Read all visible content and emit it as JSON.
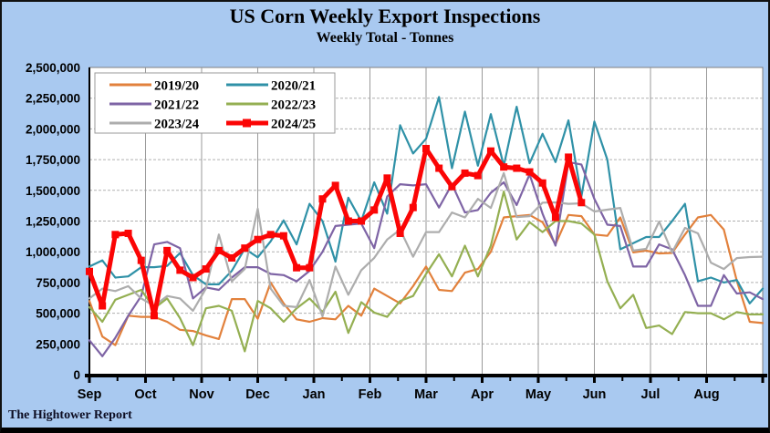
{
  "footer": "The Hightower Report",
  "colors": {
    "background": "#a9c9f0",
    "plot_background": "#ffffff",
    "axis": "#000000",
    "grid_horizontal": "#b0b0b0",
    "grid_vertical": "#9a9a9a",
    "plot_border": "#7f7f7f",
    "legend_border": "#999999",
    "label_text": "#000000"
  },
  "chart_data": {
    "type": "line",
    "title": "US Corn Weekly Export Inspections",
    "subtitle": "Weekly Total - Tonnes",
    "xlabel": "",
    "ylabel": "",
    "x_axis": {
      "unit": "weekly, Sep-Aug marketing year",
      "month_tick_labels": [
        "Sep",
        "Oct",
        "Nov",
        "Dec",
        "Jan",
        "Feb",
        "Mar",
        "Apr",
        "May",
        "Jun",
        "Jul",
        "Aug"
      ],
      "weeks_per_year": 53
    },
    "y_axis": {
      "ylim": [
        0,
        2500000
      ],
      "tick_step": 250000,
      "tick_labels": [
        "0",
        "250,000",
        "500,000",
        "750,000",
        "1,000,000",
        "1,250,000",
        "1,500,000",
        "1,750,000",
        "2,000,000",
        "2,250,000",
        "2,500,000"
      ]
    },
    "grid": true,
    "legend_position": "top-left",
    "series": [
      {
        "name": "2019/20",
        "color": "#e2813c",
        "line_width": 2.2,
        "marker": "none",
        "values": [
          600000,
          310000,
          240000,
          480000,
          470000,
          470000,
          430000,
          365000,
          355000,
          320000,
          290000,
          615000,
          615000,
          455000,
          750000,
          580000,
          450000,
          430000,
          460000,
          450000,
          560000,
          480000,
          700000,
          640000,
          580000,
          720000,
          880000,
          690000,
          680000,
          830000,
          860000,
          1000000,
          1280000,
          1290000,
          1300000,
          1240000,
          1060000,
          1300000,
          1290000,
          1140000,
          1130000,
          1280000,
          995000,
          1010000,
          987000,
          990000,
          1140000,
          1280000,
          1300000,
          1180000,
          764000,
          430000,
          420000
        ]
      },
      {
        "name": "2020/21",
        "color": "#2f91a7",
        "line_width": 2.2,
        "marker": "none",
        "values": [
          880000,
          930000,
          790000,
          800000,
          875000,
          875000,
          885000,
          990000,
          810000,
          735000,
          735000,
          845000,
          1025000,
          955000,
          1085000,
          1255000,
          1060000,
          1390000,
          1250000,
          920000,
          1440000,
          1250000,
          1565000,
          1310000,
          2030000,
          1800000,
          1920000,
          2260000,
          1680000,
          2140000,
          1700000,
          2120000,
          1700000,
          2180000,
          1720000,
          1960000,
          1730000,
          2070000,
          1450000,
          2060000,
          1750000,
          1020000,
          1070000,
          1120000,
          1120000,
          1250000,
          1390000,
          760000,
          790000,
          750000,
          770000,
          580000,
          700000
        ]
      },
      {
        "name": "2021/22",
        "color": "#7e64a5",
        "line_width": 2.2,
        "marker": "none",
        "values": [
          280000,
          150000,
          300000,
          480000,
          640000,
          1060000,
          1080000,
          1030000,
          620000,
          710000,
          690000,
          790000,
          875000,
          875000,
          820000,
          810000,
          760000,
          845000,
          1000000,
          1210000,
          1220000,
          1230000,
          1030000,
          1450000,
          1550000,
          1540000,
          1550000,
          1360000,
          1550000,
          1320000,
          1340000,
          1480000,
          1565000,
          1380000,
          1630000,
          1310000,
          1050000,
          1730000,
          1710000,
          1430000,
          1220000,
          1210000,
          880000,
          880000,
          1060000,
          1020000,
          810000,
          560000,
          560000,
          810000,
          660000,
          670000,
          615000
        ]
      },
      {
        "name": "2022/23",
        "color": "#94af52",
        "line_width": 2.2,
        "marker": "none",
        "values": [
          550000,
          430000,
          610000,
          650000,
          690000,
          540000,
          620000,
          460000,
          240000,
          540000,
          560000,
          520000,
          190000,
          600000,
          540000,
          430000,
          540000,
          620000,
          510000,
          675000,
          340000,
          590000,
          505000,
          470000,
          600000,
          640000,
          820000,
          980000,
          800000,
          1050000,
          800000,
          1050000,
          1490000,
          1100000,
          1240000,
          1160000,
          1250000,
          1250000,
          1230000,
          1140000,
          760000,
          540000,
          650000,
          380000,
          400000,
          330000,
          510000,
          500000,
          500000,
          450000,
          510000,
          490000,
          490000
        ]
      },
      {
        "name": "2023/24",
        "color": "#adadad",
        "line_width": 2.2,
        "marker": "none",
        "values": [
          620000,
          700000,
          680000,
          720000,
          620000,
          560000,
          640000,
          620000,
          520000,
          700000,
          1140000,
          760000,
          860000,
          1350000,
          700000,
          560000,
          550000,
          770000,
          475000,
          880000,
          650000,
          850000,
          950000,
          1100000,
          1180000,
          960000,
          1160000,
          1160000,
          1320000,
          1280000,
          1430000,
          1357000,
          1640000,
          1283000,
          1290000,
          1400000,
          1402000,
          1390000,
          1394000,
          1328000,
          1343000,
          1357000,
          1010000,
          1024000,
          1246000,
          995000,
          1194000,
          1150000,
          912000,
          860000,
          949000,
          957000,
          960000
        ]
      },
      {
        "name": "2024/25",
        "color": "#fb0505",
        "line_width": 5,
        "marker": "square",
        "values": [
          840000,
          560000,
          1140000,
          1150000,
          930000,
          480000,
          1010000,
          850000,
          790000,
          860000,
          1010000,
          950000,
          1030000,
          1100000,
          1140000,
          1130000,
          870000,
          870000,
          1430000,
          1540000,
          1250000,
          1250000,
          1340000,
          1600000,
          1150000,
          1360000,
          1840000,
          1680000,
          1530000,
          1640000,
          1620000,
          1820000,
          1690000,
          1680000,
          1650000,
          1560000,
          1280000,
          1770000,
          1400000
        ]
      }
    ]
  }
}
